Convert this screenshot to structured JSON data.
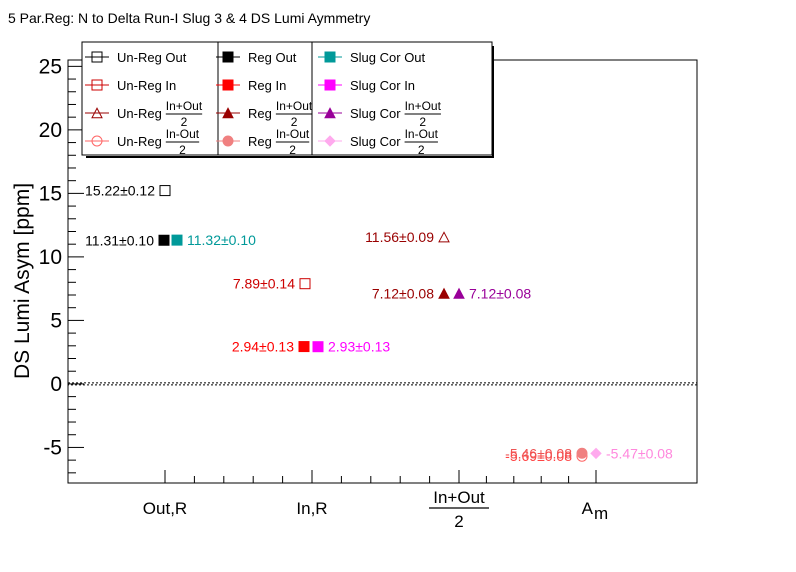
{
  "chart_data": {
    "type": "scatter",
    "title": "5 Par.Reg: N to Delta Run-I Slug 3 & 4 DS Lumi Aymmetry",
    "ylabel": "DS Lumi Asym [ppm]",
    "xlabel": "",
    "ylim": [
      -7.8,
      25.5
    ],
    "yticks": [
      -5,
      0,
      5,
      10,
      15,
      20,
      25
    ],
    "grid": false,
    "legend_position": "top-left",
    "categories": [
      {
        "type": "text",
        "text": "Out,R"
      },
      {
        "type": "text",
        "text": "In,R"
      },
      {
        "type": "frac",
        "num": "In+Out",
        "den": "2"
      },
      {
        "type": "sub",
        "base": "A",
        "sub": "m"
      }
    ],
    "series": [
      {
        "name": "Un-Reg Out",
        "marker": "open-square",
        "color": "#000000",
        "points": [
          {
            "x": 0,
            "y": 15.22,
            "label": "15.22±0.12"
          }
        ]
      },
      {
        "name": "Un-Reg In",
        "marker": "open-square",
        "color": "#cc0000",
        "points": [
          {
            "x": 1,
            "y": 7.89,
            "label": "7.89±0.14"
          }
        ]
      },
      {
        "name_pre": "Un-Reg",
        "frac_num": "In+Out",
        "frac_den": "2",
        "marker": "open-triangle",
        "color": "#990000",
        "points": [
          {
            "x": 2,
            "y": 11.56,
            "label": "11.56±0.09"
          }
        ]
      },
      {
        "name_pre": "Un-Reg",
        "frac_num": "In-Out",
        "frac_den": "2",
        "marker": "open-circle",
        "color": "#ff6666",
        "points": [
          {
            "x": 3,
            "y": -5.69,
            "label": "-5.69±0.08"
          }
        ]
      },
      {
        "name": "Reg Out",
        "marker": "square",
        "color": "#000000",
        "points": [
          {
            "x": 0,
            "y": 11.31,
            "label": "11.31±0.10"
          }
        ]
      },
      {
        "name": "Reg In",
        "marker": "square",
        "color": "#ff0000",
        "points": [
          {
            "x": 1,
            "y": 2.94,
            "label": "2.94±0.13"
          }
        ]
      },
      {
        "name_pre": "Reg",
        "frac_num": "In+Out",
        "frac_den": "2",
        "marker": "triangle",
        "color": "#990000",
        "points": [
          {
            "x": 2,
            "y": 7.12,
            "label": "7.12±0.08"
          }
        ]
      },
      {
        "name_pre": "Reg",
        "frac_num": "In-Out",
        "frac_den": "2",
        "marker": "circle",
        "color": "#f08080",
        "points": [
          {
            "x": 3,
            "y": -5.46,
            "label": "-5.46±0.08"
          }
        ]
      },
      {
        "name": "Slug Cor Out",
        "marker": "square",
        "color": "#009999",
        "points": [
          {
            "x": 0,
            "y": 11.32,
            "label": "11.32±0.10"
          }
        ]
      },
      {
        "name": "Slug Cor In",
        "marker": "square",
        "color": "#ff00ff",
        "points": [
          {
            "x": 1,
            "y": 2.93,
            "label": "2.93±0.13"
          }
        ]
      },
      {
        "name_pre": "Slug Cor",
        "frac_num": "In+Out",
        "frac_den": "2",
        "marker": "triangle",
        "color": "#990099",
        "points": [
          {
            "x": 2,
            "y": 7.12,
            "label": "7.12±0.08"
          }
        ]
      },
      {
        "name_pre": "Slug Cor",
        "frac_num": "In-Out",
        "frac_den": "2",
        "marker": "diamond",
        "color": "#ffaaee",
        "points": [
          {
            "x": 3,
            "y": -5.47,
            "label": "-5.47±0.08"
          }
        ]
      }
    ]
  }
}
